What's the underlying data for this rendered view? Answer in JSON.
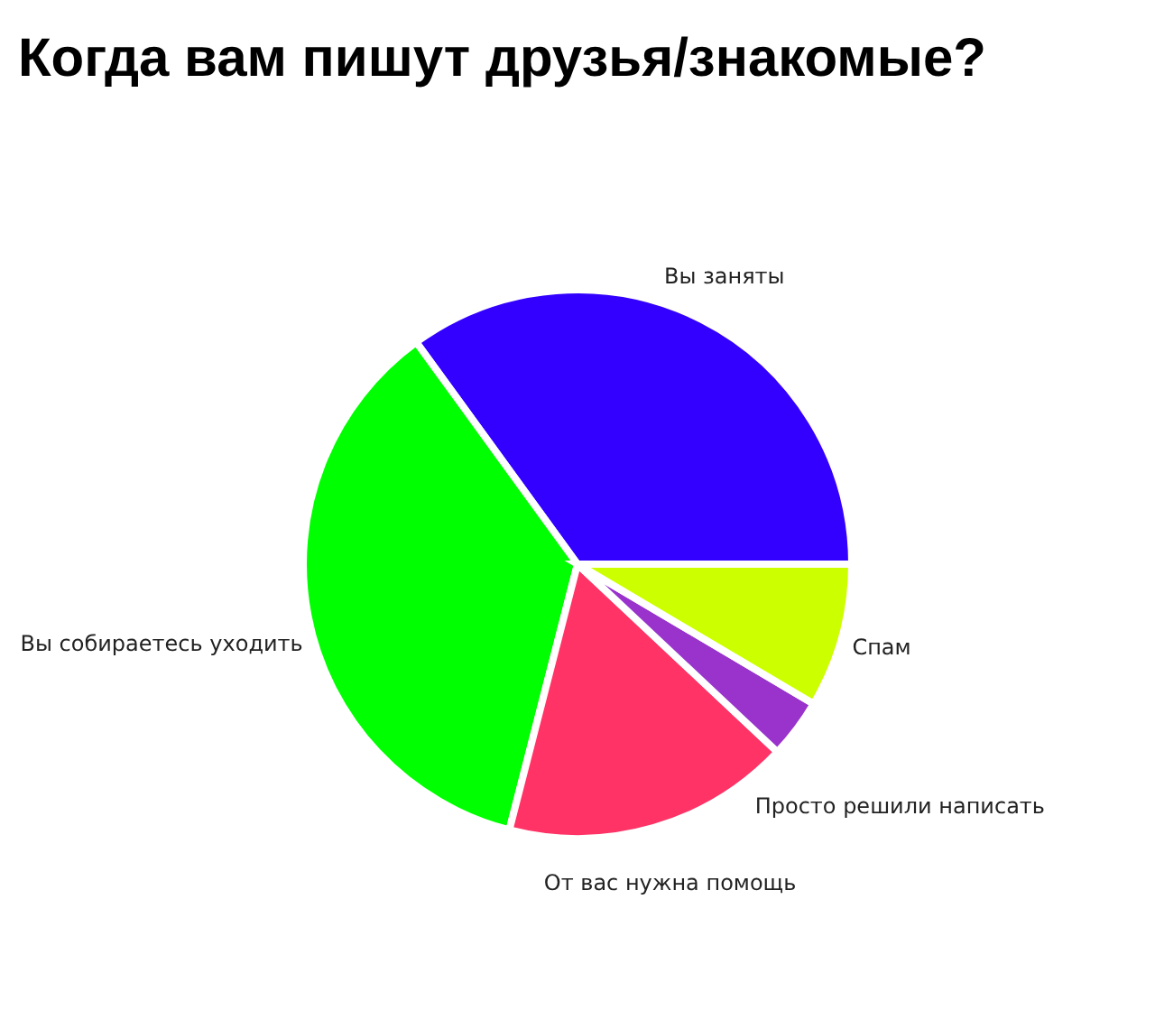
{
  "chart_data": {
    "type": "pie",
    "title": "Когда вам пишут друзья/знакомые?",
    "categories": [
      "Вы заняты",
      "Вы собираетесь уходить",
      "От вас нужна помощь",
      "Просто решили написать",
      "Спам"
    ],
    "values": [
      35,
      36,
      17,
      3.5,
      8.5
    ],
    "colors": [
      "#3300ff",
      "#00ff00",
      "#ff3366",
      "#9933cc",
      "#ccff00"
    ]
  }
}
